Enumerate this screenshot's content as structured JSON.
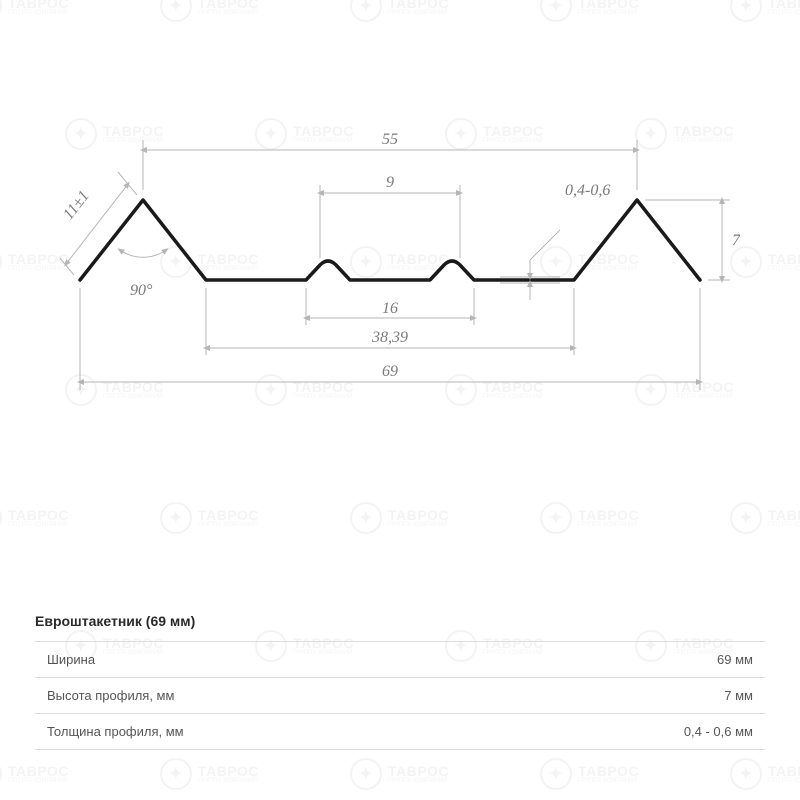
{
  "diagram": {
    "dimensions": {
      "top_span": "55",
      "slant": "11±1",
      "angle": "90°",
      "bump_top": "9",
      "bump_base": "16",
      "inner_span": "38,39",
      "full_width": "69",
      "thickness": "0,4-0,6",
      "height": "7"
    },
    "colors": {
      "profile": "#1a1a1a",
      "dim": "#b5b5b5",
      "label": "#7a7a7a",
      "bg": "#ffffff",
      "watermark": "#e8e8e8",
      "table_text": "#555555",
      "table_border": "#dddddd",
      "title_text": "#2a2a2a"
    },
    "watermark": {
      "main": "ТАВРОС",
      "sub": "ГРУППА КОМПАНИЙ"
    }
  },
  "specs": {
    "title": "Евроштакетник (69 мм)",
    "rows": [
      {
        "label": "Ширина",
        "value": "69 мм"
      },
      {
        "label": "Высота профиля, мм",
        "value": "7 мм"
      },
      {
        "label": "Толщина профиля, мм",
        "value": "0,4 - 0,6 мм"
      }
    ]
  }
}
